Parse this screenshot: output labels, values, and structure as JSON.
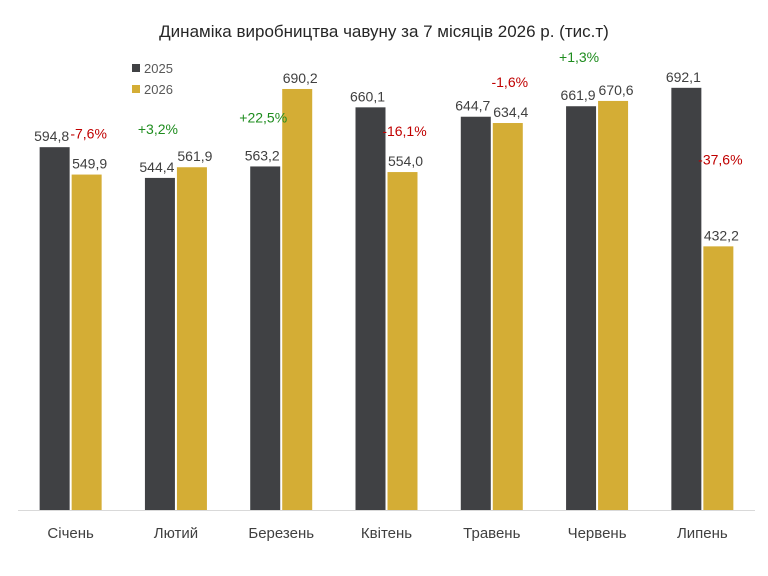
{
  "chart_data": {
    "type": "bar",
    "title": "Динаміка виробництва чавуну за 7 місяців 2026 р. (тис.т)",
    "categories": [
      "Січень",
      "Лютий",
      "Березень",
      "Квітень",
      "Травень",
      "Червень",
      "Липень"
    ],
    "series": [
      {
        "name": "2025",
        "color": "#404144",
        "values": [
          594.8,
          544.4,
          563.2,
          660.1,
          644.7,
          661.9,
          692.1
        ],
        "labels": [
          "594,8",
          "544,4",
          "563,2",
          "660,1",
          "644,7",
          "661,9",
          "692,1"
        ]
      },
      {
        "name": "2026",
        "color": "#D4AD35",
        "values": [
          549.9,
          561.9,
          690.2,
          554.0,
          634.4,
          670.6,
          432.2
        ],
        "labels": [
          "549,9",
          "561,9",
          "690,2",
          "554,0",
          "634,4",
          "670,6",
          "432,2"
        ]
      }
    ],
    "changes": [
      "-7,6%",
      "+3,2%",
      "+22,5%",
      "-16,1%",
      "-1,6%",
      "+1,3%",
      "-37,6%"
    ],
    "change_colors": {
      "positive": "#1E8C1E",
      "negative": "#C00000"
    },
    "ylim": [
      0,
      700
    ],
    "grid": false,
    "legend": "top-left"
  }
}
